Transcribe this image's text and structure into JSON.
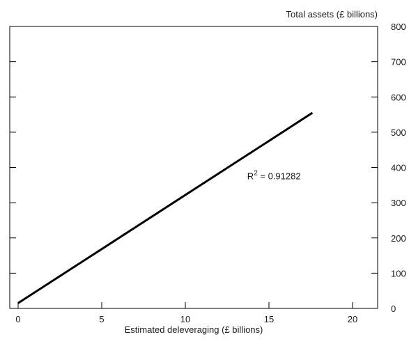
{
  "chart_data": {
    "type": "line",
    "title": "",
    "xlabel": "Estimated deleveraging (£ billions)",
    "ylabel": "Total assets (£ billions)",
    "xlim": [
      -0.5,
      21.5
    ],
    "ylim": [
      0,
      800
    ],
    "x_ticks": [
      0,
      5,
      10,
      15,
      20
    ],
    "y_ticks": [
      0,
      100,
      200,
      300,
      400,
      500,
      600,
      700,
      800
    ],
    "y_axis_side": "right",
    "grid": false,
    "legend": "none",
    "series": [
      {
        "x": [
          0,
          17.6
        ],
        "y": [
          15,
          555
        ],
        "color": "#000000"
      }
    ],
    "annotations": [
      {
        "prefix": "R",
        "superscript": "2",
        "suffix": " = 0.91282",
        "x": 13.7,
        "y": 400
      }
    ]
  }
}
